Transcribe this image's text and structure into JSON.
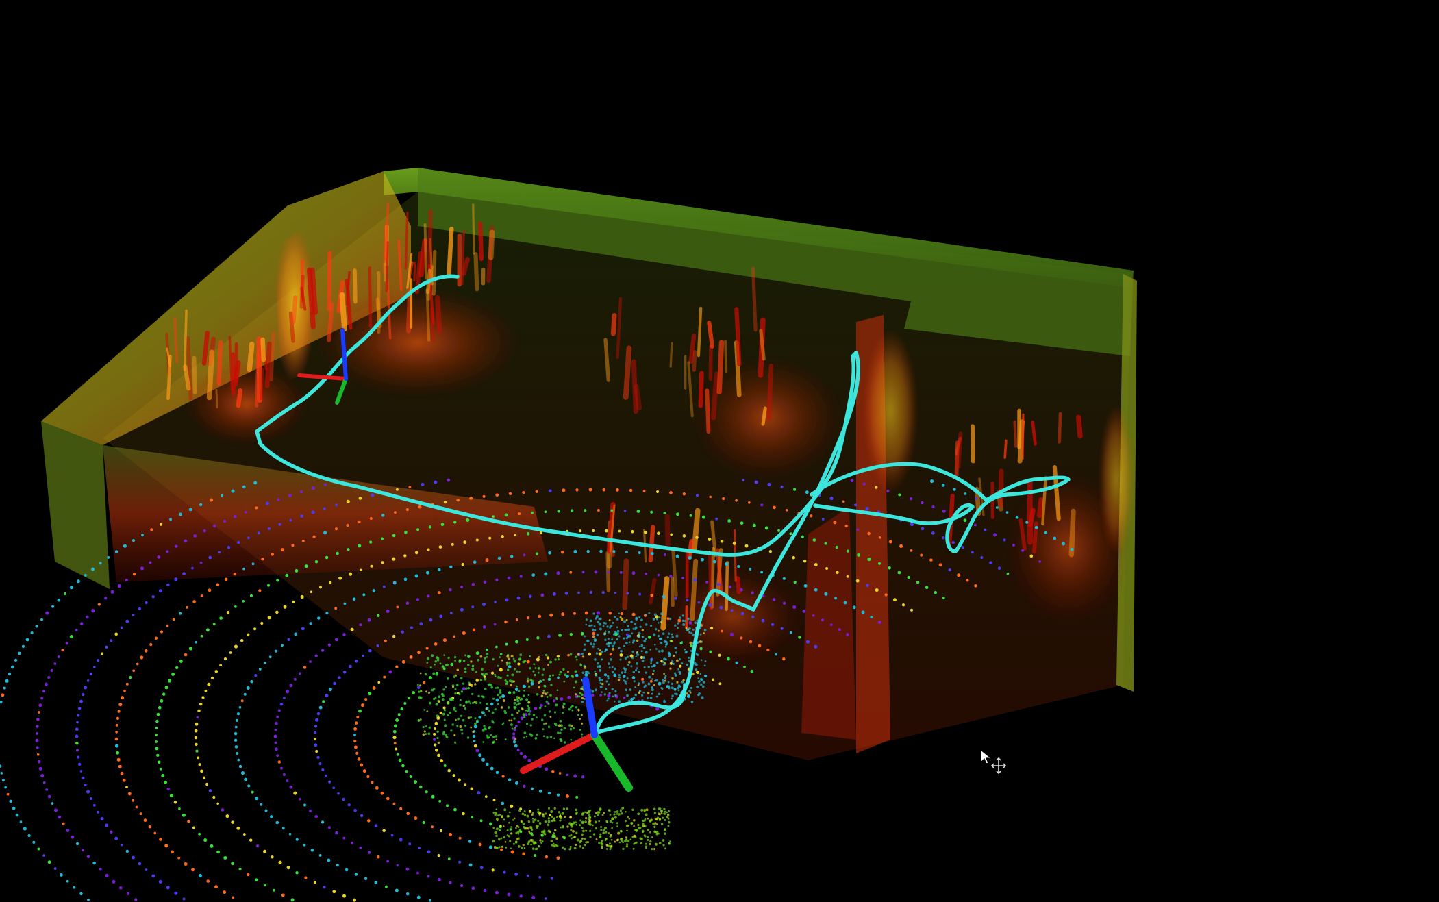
{
  "viewer": {
    "name": "3d-point-cloud-viewport",
    "background": "#000000",
    "interaction_mode": "move"
  },
  "scene": {
    "map_cloud": {
      "colormap": [
        "#2e7d16",
        "#7fbf1c",
        "#d7d21b",
        "#ff9d1a",
        "#ff3b10",
        "#c80d05"
      ],
      "wall_color": "#5d8f1e"
    },
    "live_scan": {
      "colormap": [
        "#7a1fd6",
        "#4b3cf0",
        "#21b9d8",
        "#38e03a",
        "#e9d52a",
        "#ff6a1a"
      ]
    },
    "trajectory": {
      "color": "#3de6dc"
    },
    "frames": [
      {
        "name": "start-pose-frame",
        "x_color": "#e01b1b",
        "y_color": "#18b82a",
        "z_color": "#1a3cff"
      },
      {
        "name": "current-pose-frame",
        "x_color": "#e01b1b",
        "y_color": "#18b82a",
        "z_color": "#1a3cff"
      }
    ]
  },
  "cursor": {
    "icon": "move-cursor-icon"
  }
}
